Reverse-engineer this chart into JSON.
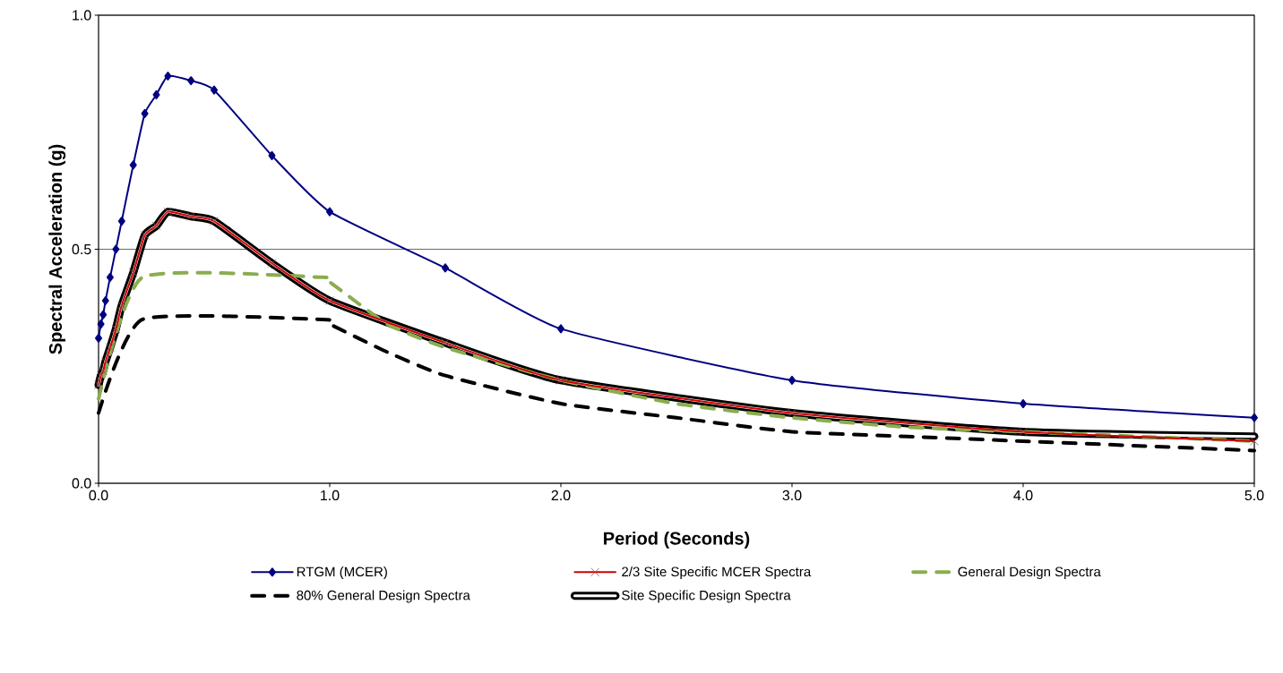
{
  "chart_data": {
    "type": "line",
    "xlabel": "Period (Seconds)",
    "ylabel": "Spectral Acceleration (g)",
    "xlim": [
      0,
      5
    ],
    "ylim": [
      0,
      1
    ],
    "xticks": [
      {
        "value": 0,
        "label": "0.0"
      },
      {
        "value": 1,
        "label": "1.0"
      },
      {
        "value": 2,
        "label": "2.0"
      },
      {
        "value": 3,
        "label": "3.0"
      },
      {
        "value": 4,
        "label": "4.0"
      },
      {
        "value": 5,
        "label": "5.0"
      }
    ],
    "yticks": [
      {
        "value": 0,
        "label": "0.0"
      },
      {
        "value": 0.5,
        "label": "0.5"
      },
      {
        "value": 1,
        "label": "1.0"
      }
    ],
    "grid": "y",
    "legend": "bottom",
    "series": [
      {
        "name": "RTGM (MCER)",
        "color": "#000080",
        "marker": "diamond",
        "line_style": "solid",
        "x": [
          0,
          0.01,
          0.02,
          0.03,
          0.05,
          0.075,
          0.1,
          0.15,
          0.2,
          0.25,
          0.3,
          0.4,
          0.5,
          0.75,
          1.0,
          1.5,
          2.0,
          3.0,
          4.0,
          5.0
        ],
        "values": [
          0.31,
          0.34,
          0.36,
          0.39,
          0.44,
          0.5,
          0.56,
          0.68,
          0.79,
          0.83,
          0.87,
          0.86,
          0.84,
          0.7,
          0.58,
          0.46,
          0.33,
          0.22,
          0.17,
          0.14
        ]
      },
      {
        "name": "2/3 Site Specific MCER Spectra",
        "color": "#cc0000",
        "marker": "cross",
        "line_style": "solid",
        "x": [
          0,
          0.01,
          0.02,
          0.03,
          0.05,
          0.075,
          0.1,
          0.15,
          0.2,
          0.25,
          0.3,
          0.4,
          0.5,
          0.75,
          1.0,
          1.5,
          2.0,
          3.0,
          4.0,
          5.0
        ],
        "values": [
          0.21,
          0.23,
          0.24,
          0.26,
          0.29,
          0.33,
          0.38,
          0.45,
          0.53,
          0.55,
          0.58,
          0.57,
          0.56,
          0.47,
          0.39,
          0.3,
          0.22,
          0.15,
          0.11,
          0.09
        ]
      },
      {
        "name": "General Design Spectra",
        "color": "#8aad4f",
        "marker": "none",
        "line_style": "dashed",
        "x": [
          0,
          0.19,
          0.97,
          1.0,
          1.25,
          1.5,
          2.0,
          2.5,
          3.0,
          3.5,
          4.0,
          4.5,
          5.0
        ],
        "values": [
          0.18,
          0.44,
          0.44,
          0.43,
          0.34,
          0.29,
          0.22,
          0.17,
          0.14,
          0.12,
          0.11,
          0.1,
          0.09
        ]
      },
      {
        "name": "80% General Design Spectra",
        "color": "#000000",
        "marker": "none",
        "line_style": "dashed",
        "x": [
          0,
          0.19,
          0.97,
          1.0,
          1.25,
          1.5,
          2.0,
          2.5,
          3.0,
          3.5,
          4.0,
          4.5,
          5.0
        ],
        "values": [
          0.15,
          0.35,
          0.35,
          0.34,
          0.28,
          0.23,
          0.17,
          0.14,
          0.11,
          0.1,
          0.09,
          0.08,
          0.07
        ]
      },
      {
        "name": "Site Specific Design Spectra",
        "color": "#000000",
        "marker": "none",
        "line_style": "solid",
        "x": [
          0,
          0.01,
          0.02,
          0.03,
          0.05,
          0.075,
          0.1,
          0.15,
          0.2,
          0.25,
          0.3,
          0.4,
          0.5,
          0.75,
          1.0,
          1.5,
          2.0,
          3.0,
          4.0,
          5.0
        ],
        "values": [
          0.21,
          0.23,
          0.24,
          0.26,
          0.29,
          0.33,
          0.38,
          0.45,
          0.53,
          0.55,
          0.58,
          0.57,
          0.56,
          0.47,
          0.39,
          0.3,
          0.22,
          0.15,
          0.11,
          0.1
        ]
      }
    ]
  }
}
